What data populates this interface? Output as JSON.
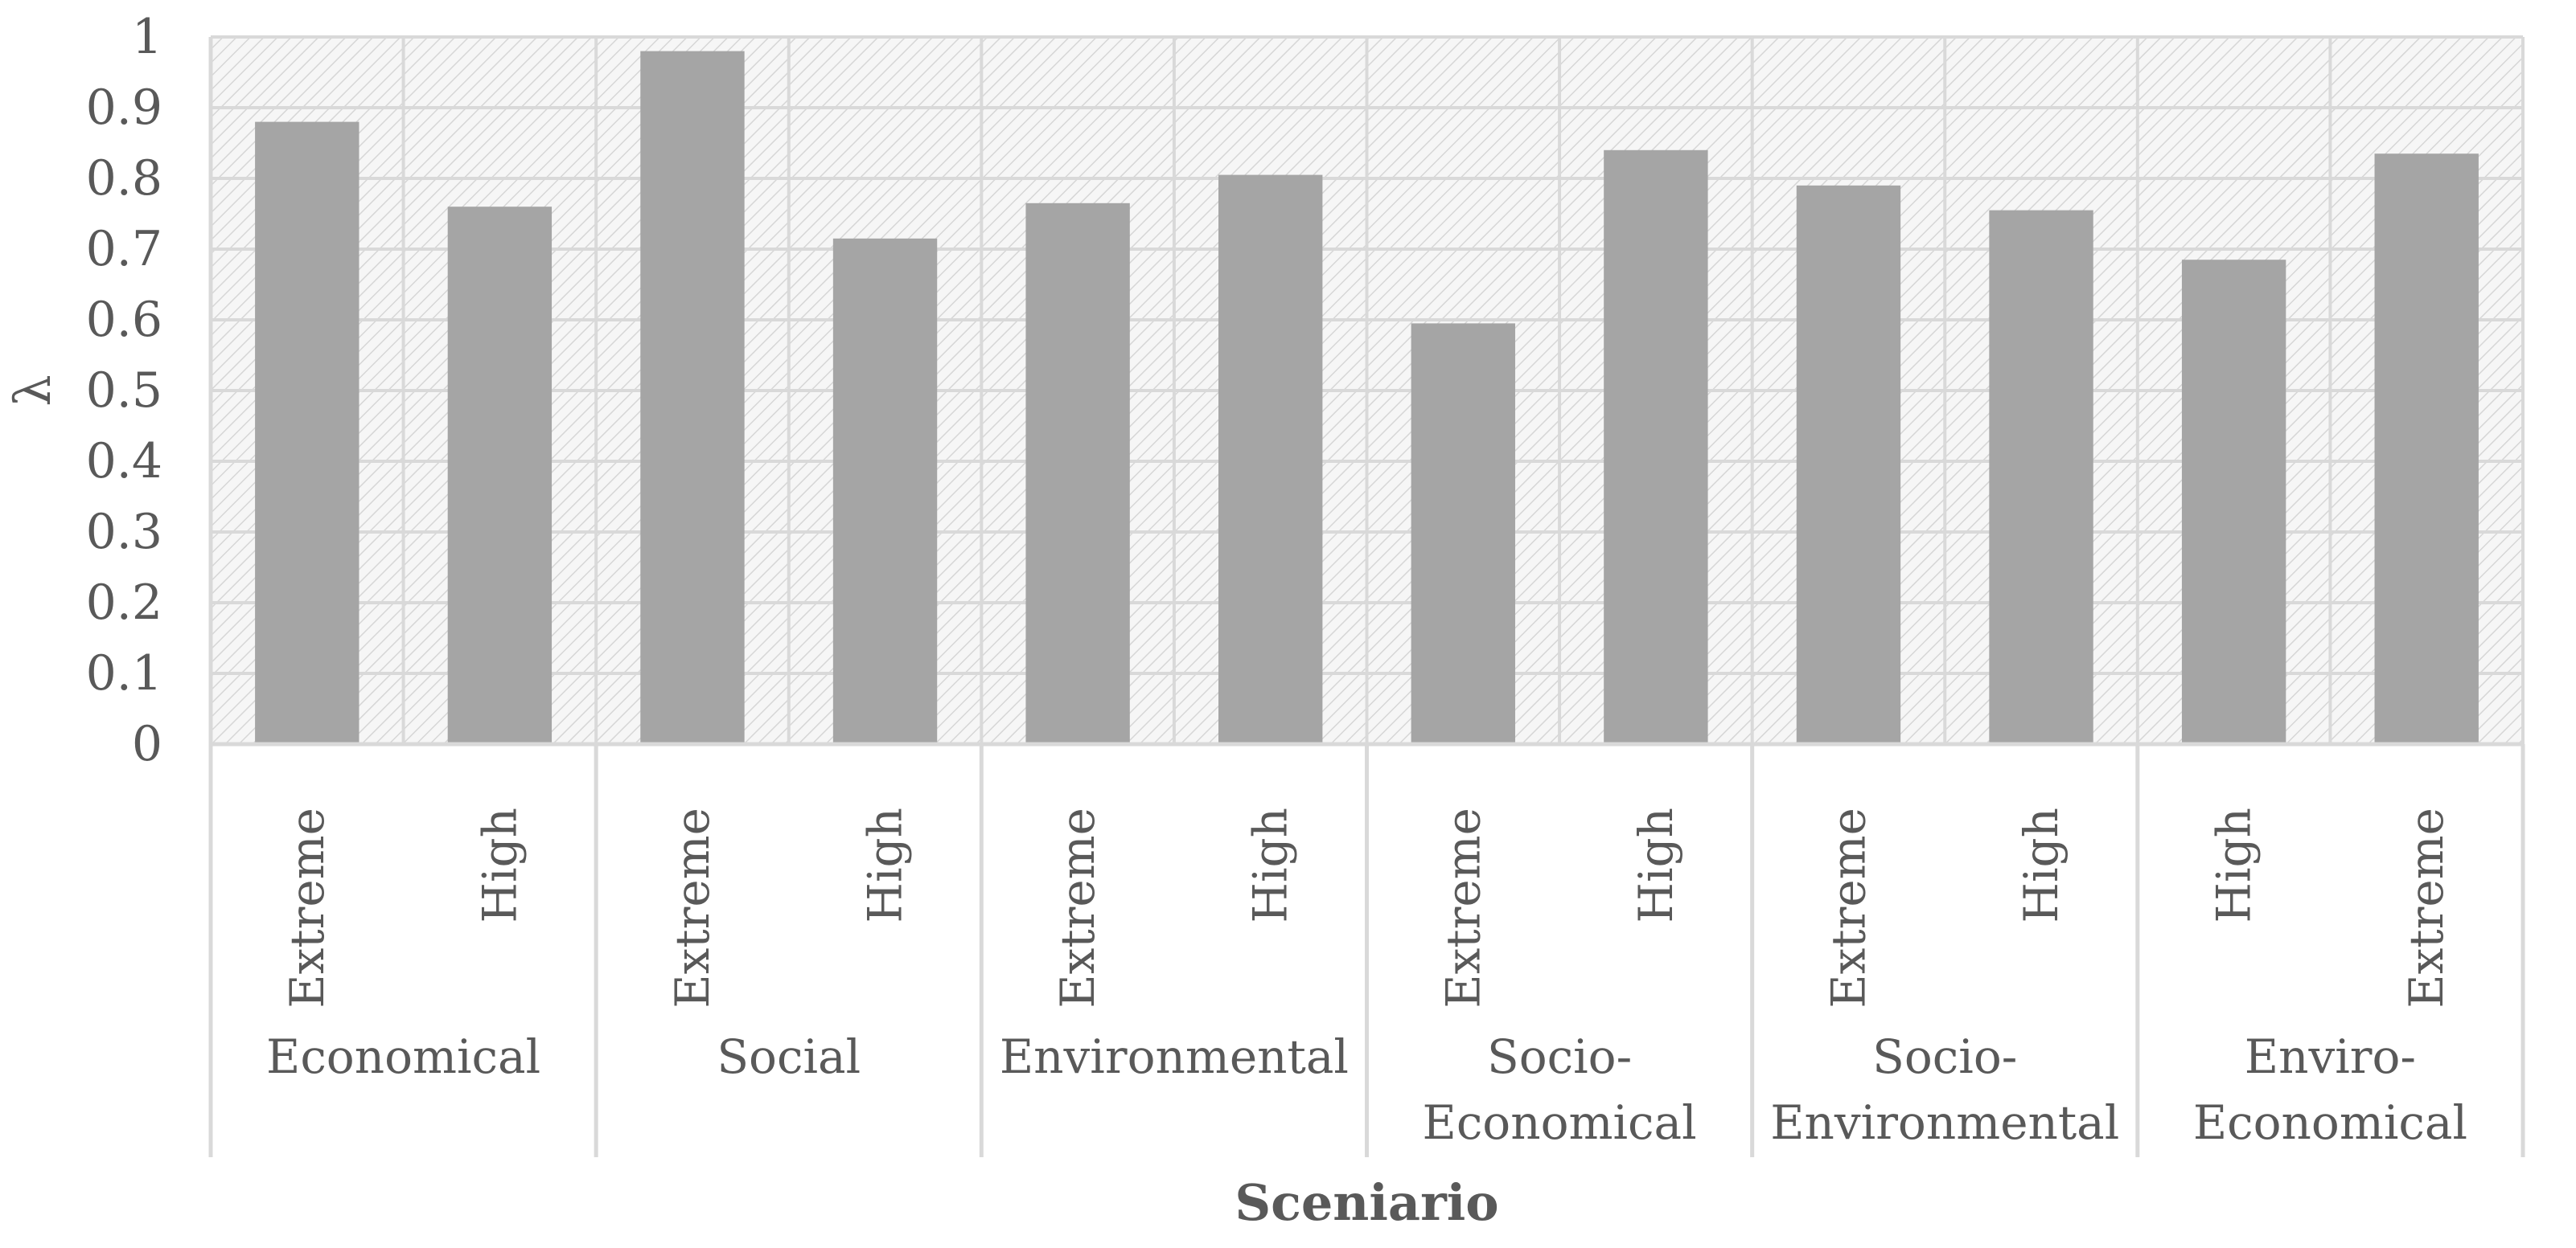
{
  "chart_data": {
    "type": "bar",
    "title": "",
    "xlabel": "Sceniario",
    "ylabel": "λ",
    "ylim": [
      0,
      1
    ],
    "yticks": [
      "0",
      "0.1",
      "0.2",
      "0.3",
      "0.4",
      "0.5",
      "0.6",
      "0.7",
      "0.8",
      "0.9",
      "1"
    ],
    "grid": true,
    "groups": [
      {
        "name_lines": [
          "Economical"
        ],
        "bars": [
          {
            "label": "Extreme",
            "value": 0.88
          },
          {
            "label": "High",
            "value": 0.76
          }
        ]
      },
      {
        "name_lines": [
          "Social"
        ],
        "bars": [
          {
            "label": "Extreme",
            "value": 0.98
          },
          {
            "label": "High",
            "value": 0.715
          }
        ]
      },
      {
        "name_lines": [
          "Environmental"
        ],
        "bars": [
          {
            "label": "Extreme",
            "value": 0.765
          },
          {
            "label": "High",
            "value": 0.805
          }
        ]
      },
      {
        "name_lines": [
          "Socio-",
          "Economical"
        ],
        "bars": [
          {
            "label": "Extreme",
            "value": 0.595
          },
          {
            "label": "High",
            "value": 0.84
          }
        ]
      },
      {
        "name_lines": [
          "Socio-",
          "Environmental"
        ],
        "bars": [
          {
            "label": "Extreme",
            "value": 0.79
          },
          {
            "label": "High",
            "value": 0.755
          }
        ]
      },
      {
        "name_lines": [
          "Enviro-",
          "Economical"
        ],
        "bars": [
          {
            "label": "High",
            "value": 0.685
          },
          {
            "label": "Extreme",
            "value": 0.835
          }
        ]
      }
    ],
    "colors": {
      "bar": "#a5a5a5",
      "grid": "#d9d9d9",
      "axis": "#d9d9d9",
      "text": "#595959",
      "hatch": "#d0d0d0"
    }
  }
}
